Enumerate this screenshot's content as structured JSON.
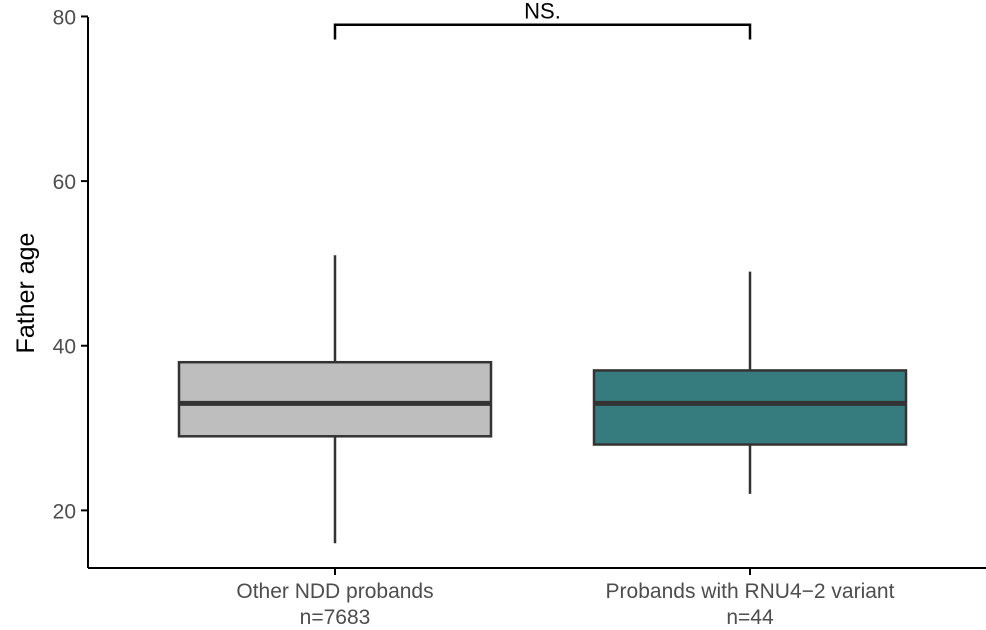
{
  "chart_data": {
    "type": "box",
    "ylabel": "Father age",
    "xlabel": "",
    "ylim": [
      13,
      82
    ],
    "yticks": [
      20,
      40,
      60,
      80
    ],
    "grid": false,
    "categories": [
      {
        "line1": "Other NDD probands",
        "line2": "n=7683"
      },
      {
        "line1": "Probands with RNU4−2 variant",
        "line2": "n=44"
      }
    ],
    "boxes": [
      {
        "whisker_low": 16,
        "q1": 29,
        "median": 33,
        "q3": 38,
        "whisker_high": 51,
        "color": "#bebebe"
      },
      {
        "whisker_low": 22,
        "q1": 28,
        "median": 33,
        "q3": 37,
        "whisker_high": 49,
        "color": "#367c7e"
      }
    ],
    "significance": {
      "label": "NS.",
      "y": 79,
      "tip": 77.2
    }
  }
}
